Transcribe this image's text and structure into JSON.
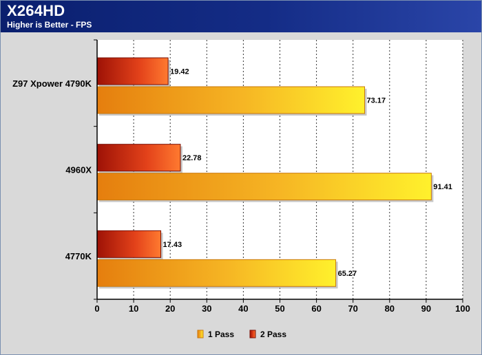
{
  "header": {
    "title": "X264HD",
    "subtitle": "Higher is Better - FPS"
  },
  "chart_data": {
    "type": "bar",
    "orientation": "horizontal",
    "title": "X264HD",
    "subtitle": "Higher is Better - FPS",
    "categories": [
      "Z97 Xpower 4790K",
      "4960X",
      "4770K"
    ],
    "series": [
      {
        "name": "2 Pass",
        "values": [
          19.42,
          22.78,
          17.43
        ],
        "color": "#e8431a"
      },
      {
        "name": "1 Pass",
        "values": [
          73.17,
          91.41,
          65.27
        ],
        "color": "#f5b21e"
      }
    ],
    "xlim": [
      0,
      100
    ],
    "xticks": [
      0,
      10,
      20,
      30,
      40,
      50,
      60,
      70,
      80,
      90,
      100
    ],
    "grid": "vertical dashed",
    "legend": [
      "1 Pass",
      "2 Pass"
    ],
    "legend_position": "bottom"
  }
}
